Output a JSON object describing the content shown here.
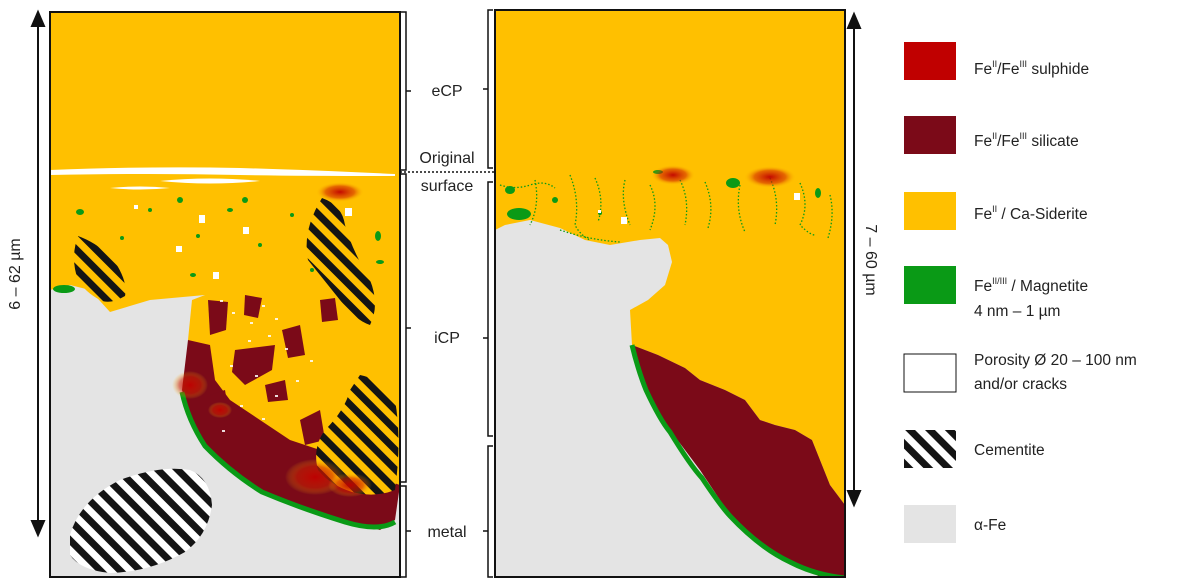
{
  "colors": {
    "sulphide": "#c00000",
    "silicate": "#7b0a18",
    "siderite": "#ffc000",
    "magnetite": "#0a9a16",
    "porosity": "#ffffff",
    "cementite_dark": "#141414",
    "cementite_light": "#ffffff",
    "alpha_fe": "#e4e4e4",
    "frame": "#111111"
  },
  "dimensions": {
    "left": "6 – 62 µm",
    "right": "7 – 60 µm"
  },
  "zones": {
    "ecp": "eCP",
    "original_line1": "Original",
    "original_line2": "surface",
    "icp": "iCP",
    "metal": "metal"
  },
  "legend": {
    "sulphide": {
      "base1": "Fe",
      "sup1": "II",
      "mid": "/Fe",
      "sup2": "III",
      "rest": " sulphide"
    },
    "silicate": {
      "base1": "Fe",
      "sup1": "II",
      "mid": "/Fe",
      "sup2": "III",
      "rest": " silicate"
    },
    "siderite": {
      "base1": "Fe",
      "sup1": "II",
      "rest": " / Ca-Siderite"
    },
    "magnetite": {
      "base1": "Fe",
      "sup1": "II/III",
      "rest": " / Magnetite",
      "line2": "4 nm – 1 µm"
    },
    "porosity": {
      "line1": "Porosity Ø 20 – 100 nm",
      "line2": "and/or cracks"
    },
    "cementite": {
      "label": "Cementite"
    },
    "alpha_fe": {
      "label": "α-Fe"
    }
  }
}
